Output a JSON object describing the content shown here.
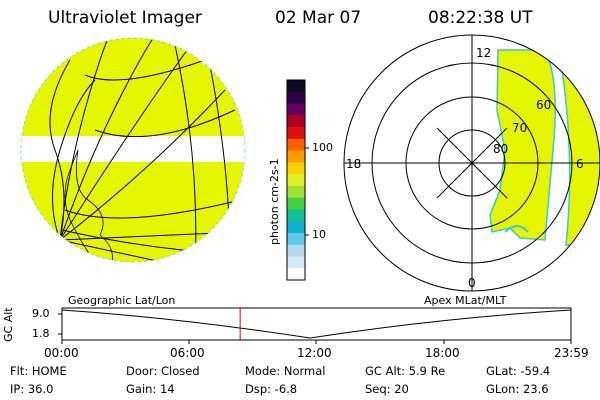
{
  "header": {
    "title": "Ultraviolet Imager",
    "date": "02 Mar 07",
    "time": "08:22:38 UT"
  },
  "colorbar": {
    "label": "photon cm-2s-1",
    "ticks": [
      "100",
      "10"
    ],
    "colors": [
      "#0b0b28",
      "#2a0040",
      "#6a0060",
      "#b00020",
      "#e01010",
      "#ff6000",
      "#ff9a00",
      "#ffd000",
      "#e0f020",
      "#a0e030",
      "#40d040",
      "#10c090",
      "#10b0d0",
      "#60c8e8",
      "#b0d8f0",
      "#d8e8f4",
      "#ffffff"
    ]
  },
  "panels": {
    "left_label": "Geographic Lat/Lon",
    "right_label": "Apex MLat/MLT"
  },
  "polar": {
    "mlt_labels": {
      "top": "12",
      "left": "18",
      "right": "6",
      "bottom": "0"
    },
    "lat_labels": [
      "60",
      "70",
      "80"
    ]
  },
  "timeline": {
    "ylabel": "GC Alt",
    "yticks": [
      "9.0",
      "1.8"
    ],
    "xticks": [
      "00:00",
      "06:00",
      "12:00",
      "18:00",
      "23:59"
    ],
    "current_fraction": 0.35
  },
  "info": {
    "flt": "Flt: HOME",
    "ip": "IP: 36.0",
    "door": "Door: Closed",
    "gain": "Gain: 14",
    "mode": "Mode: Normal",
    "dsp": "Dsp:    -6.8",
    "gcalt": "GC Alt: 5.9 Re",
    "seq": "Seq: 20",
    "glat": "GLat:  -59.4",
    "glon": "GLon:  23.6"
  },
  "colors": {
    "aurora_fill": "#e6f500",
    "aurora_edge": "#3cc8c8",
    "timeline_marker": "#e00000"
  }
}
